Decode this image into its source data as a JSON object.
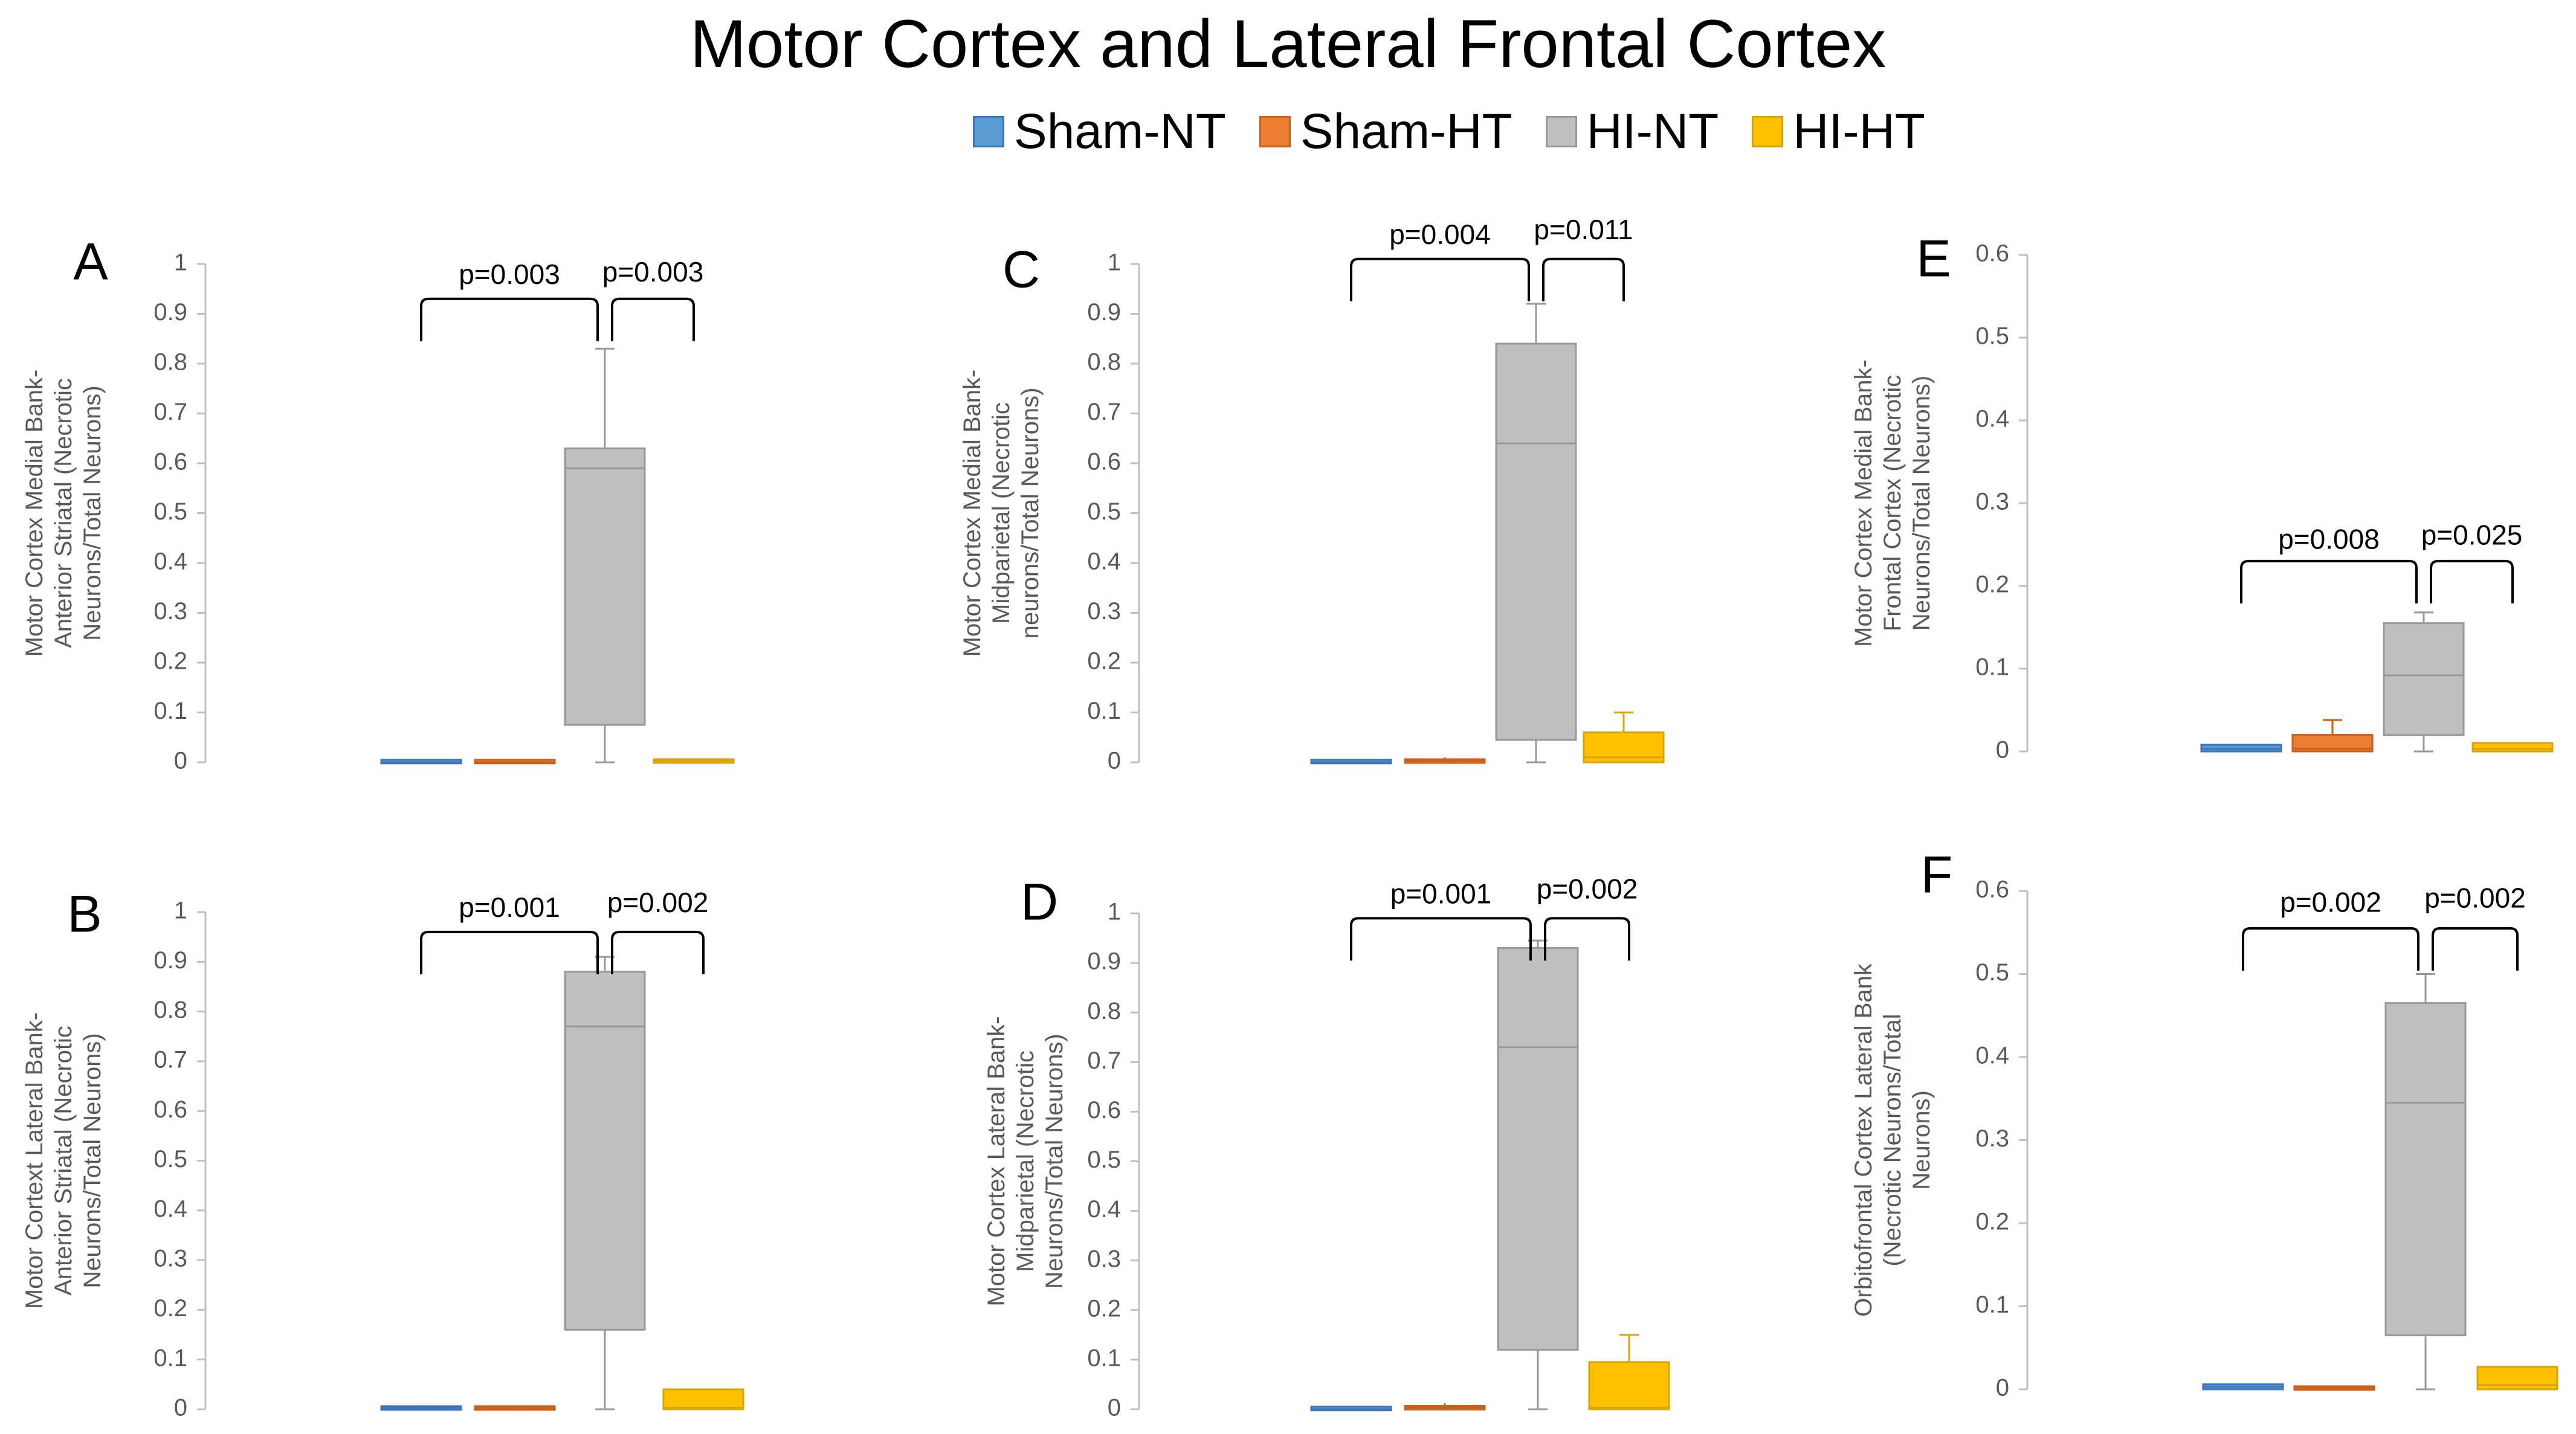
{
  "title": "Motor Cortex and Lateral Frontal Cortex",
  "legend": [
    {
      "label": "Sham-NT",
      "color": "#5B9BD5",
      "stroke": "#3E74B8"
    },
    {
      "label": "Sham-HT",
      "color": "#ED7D31",
      "stroke": "#C9601A"
    },
    {
      "label": "HI-NT",
      "color": "#BFBFBF",
      "stroke": "#999999"
    },
    {
      "label": "HI-HT",
      "color": "#FFC000",
      "stroke": "#D9A300"
    }
  ],
  "chart_data": [
    {
      "panel": "A",
      "type": "box",
      "ylabel": "Motor Cortex Medial Bank-Anterior Striatal (Necrotic Neurons/Total Neurons)",
      "ylabel_lines": [
        "Motor Cortex Medial Bank-",
        "Anterior Striatal (Necrotic",
        "Neurons/Total Neurons)"
      ],
      "ylim": [
        0,
        1
      ],
      "yticks": [
        "0",
        "0.1",
        "0.2",
        "0.3",
        "0.4",
        "0.5",
        "0.6",
        "0.7",
        "0.8",
        "0.9",
        "1"
      ],
      "categories": [
        "Sham-NT",
        "Sham-HT",
        "HI-NT",
        "HI-HT"
      ],
      "boxes": [
        {
          "min": 0,
          "q1": 0,
          "median": 0,
          "q3": 0.003,
          "max": 0.003
        },
        {
          "min": 0,
          "q1": 0,
          "median": 0,
          "q3": 0.003,
          "max": 0.003
        },
        {
          "min": 0,
          "q1": 0.075,
          "median": 0.59,
          "q3": 0.63,
          "max": 0.83
        },
        {
          "min": 0,
          "q1": 0,
          "median": 0.003,
          "q3": 0.005,
          "max": 0.006
        }
      ],
      "annotations": [
        {
          "text": "p=0.003",
          "from": "Sham-NT",
          "to": "HI-NT",
          "y_data": 0.93,
          "label_y_data": 0.96
        },
        {
          "text": "p=0.003",
          "from": "HI-NT",
          "to": "HI-HT",
          "y_data": 0.93,
          "label_y_data": 0.965
        }
      ]
    },
    {
      "panel": "B",
      "type": "box",
      "ylabel": "Motor Cortext Lateral Bank-Anterior Striatal (Necrotic Neurons/Total Neurons)",
      "ylabel_lines": [
        "Motor Cortext Lateral Bank-",
        "Anterior Striatal (Necrotic",
        "Neurons/Total Neurons)"
      ],
      "ylim": [
        0,
        1
      ],
      "yticks": [
        "0",
        "0.1",
        "0.2",
        "0.3",
        "0.4",
        "0.5",
        "0.6",
        "0.7",
        "0.8",
        "0.9",
        "1"
      ],
      "categories": [
        "Sham-NT",
        "Sham-HT",
        "HI-NT",
        "HI-HT"
      ],
      "boxes": [
        {
          "min": 0,
          "q1": 0,
          "median": 0.003,
          "q3": 0.005,
          "max": 0.008
        },
        {
          "min": 0,
          "q1": 0,
          "median": 0.003,
          "q3": 0.005,
          "max": 0.008
        },
        {
          "min": 0,
          "q1": 0.16,
          "median": 0.77,
          "q3": 0.88,
          "max": 0.91
        },
        {
          "min": 0,
          "q1": 0,
          "median": 0.003,
          "q3": 0.04,
          "max": 0.04
        }
      ],
      "annotations": [
        {
          "text": "p=0.001",
          "from": "Sham-NT",
          "to": "HI-NT",
          "y_data": 0.96,
          "label_y_data": 0.99
        },
        {
          "text": "p=0.002",
          "from": "HI-NT",
          "to": "HI-HT",
          "y_data": 0.96,
          "label_y_data": 1.0
        }
      ]
    },
    {
      "panel": "C",
      "type": "box",
      "ylabel": "Motor Cortex Medial Bank-Midparietal (Necrotic neurons/Total Neurons)",
      "ylabel_lines": [
        "Motor Cortex Medial Bank-",
        "Midparietal (Necrotic",
        "neurons/Total Neurons)"
      ],
      "ylim": [
        0,
        1
      ],
      "yticks": [
        "0",
        "0.1",
        "0.2",
        "0.3",
        "0.4",
        "0.5",
        "0.6",
        "0.7",
        "0.8",
        "0.9",
        "1"
      ],
      "categories": [
        "Sham-NT",
        "Sham-HT",
        "HI-NT",
        "HI-HT"
      ],
      "boxes": [
        {
          "min": 0,
          "q1": 0,
          "median": 0,
          "q3": 0.003,
          "max": 0.003
        },
        {
          "min": 0,
          "q1": 0,
          "median": 0.003,
          "q3": 0.005,
          "max": 0.01
        },
        {
          "min": 0,
          "q1": 0.045,
          "median": 0.64,
          "q3": 0.84,
          "max": 0.92
        },
        {
          "min": 0,
          "q1": 0,
          "median": 0.01,
          "q3": 0.06,
          "max": 0.1
        }
      ],
      "annotations": [
        {
          "text": "p=0.004",
          "from": "Sham-NT",
          "to": "HI-NT",
          "y_data": 1.01,
          "label_y_data": 1.04
        },
        {
          "text": "p=0.011",
          "from": "HI-NT",
          "to": "HI-HT",
          "y_data": 1.01,
          "label_y_data": 1.05
        }
      ]
    },
    {
      "panel": "D",
      "type": "box",
      "ylabel": "Motor Cortex Lateral Bank-Midparietal (Necrotic Neurons/Total Neurons)",
      "ylabel_lines": [
        "Motor Cortex  Lateral Bank-",
        "Midparietal (Necrotic",
        "Neurons/Total Neurons)"
      ],
      "ylim": [
        0,
        1
      ],
      "yticks": [
        "0",
        "0.1",
        "0.2",
        "0.3",
        "0.4",
        "0.5",
        "0.6",
        "0.7",
        "0.8",
        "0.9",
        "1"
      ],
      "categories": [
        "Sham-NT",
        "Sham-HT",
        "HI-NT",
        "HI-HT"
      ],
      "boxes": [
        {
          "min": 0,
          "q1": 0,
          "median": 0,
          "q3": 0.003,
          "max": 0.003
        },
        {
          "min": 0,
          "q1": 0,
          "median": 0.003,
          "q3": 0.006,
          "max": 0.012
        },
        {
          "min": 0,
          "q1": 0.12,
          "median": 0.73,
          "q3": 0.93,
          "max": 0.945
        },
        {
          "min": 0,
          "q1": 0,
          "median": 0.003,
          "q3": 0.095,
          "max": 0.15
        }
      ],
      "annotations": [
        {
          "text": "p=0.001",
          "from": "Sham-NT",
          "to": "HI-NT",
          "y_data": 0.99,
          "label_y_data": 1.02
        },
        {
          "text": "p=0.002",
          "from": "HI-NT",
          "to": "HI-HT",
          "y_data": 0.99,
          "label_y_data": 1.03
        }
      ]
    },
    {
      "panel": "E",
      "type": "box",
      "ylabel": "Motor Cortex Medial Bank-Frontal Cortex (Necrotic Neurons/Total Neurons)",
      "ylabel_lines": [
        "Motor Cortex Medial Bank-",
        "Frontal Cortex (Necrotic",
        "Neurons/Total Neurons)"
      ],
      "ylim": [
        0,
        0.6
      ],
      "yticks": [
        "0",
        "0.1",
        "0.2",
        "0.3",
        "0.4",
        "0.5",
        "0.6"
      ],
      "categories": [
        "Sham-NT",
        "Sham-HT",
        "HI-NT",
        "HI-HT"
      ],
      "boxes": [
        {
          "min": 0,
          "q1": 0,
          "median": 0.003,
          "q3": 0.008,
          "max": 0.008
        },
        {
          "min": 0,
          "q1": 0,
          "median": 0.003,
          "q3": 0.02,
          "max": 0.038
        },
        {
          "min": 0,
          "q1": 0.02,
          "median": 0.092,
          "q3": 0.155,
          "max": 0.168
        },
        {
          "min": 0,
          "q1": 0,
          "median": 0.003,
          "q3": 0.01,
          "max": 0.01
        }
      ],
      "annotations": [
        {
          "text": "p=0.008",
          "from": "Sham-NT",
          "to": "HI-NT",
          "y_data": 0.23,
          "label_y_data": 0.245
        },
        {
          "text": "p=0.025",
          "from": "HI-NT",
          "to": "HI-HT",
          "y_data": 0.23,
          "label_y_data": 0.25
        }
      ]
    },
    {
      "panel": "F",
      "type": "box",
      "ylabel": "Orbitofrontal Cortex Lateral Bank (Necrotic Neurons/Total Neurons)",
      "ylabel_lines": [
        "Orbitofrontal Cortex Lateral Bank",
        "(Necrotic Neurons/Total",
        "Neurons)"
      ],
      "ylim": [
        0,
        0.6
      ],
      "yticks": [
        "0",
        "0.1",
        "0.2",
        "0.3",
        "0.4",
        "0.5",
        "0.6"
      ],
      "categories": [
        "Sham-NT",
        "Sham-HT",
        "HI-NT",
        "HI-HT"
      ],
      "boxes": [
        {
          "min": 0,
          "q1": 0,
          "median": 0.003,
          "q3": 0.006,
          "max": 0.006
        },
        {
          "min": 0,
          "q1": 0,
          "median": 0.002,
          "q3": 0.003,
          "max": 0.003
        },
        {
          "min": 0,
          "q1": 0.065,
          "median": 0.345,
          "q3": 0.465,
          "max": 0.5
        },
        {
          "min": 0,
          "q1": 0,
          "median": 0.005,
          "q3": 0.027,
          "max": 0.027
        }
      ],
      "annotations": [
        {
          "text": "p=0.002",
          "from": "Sham-NT",
          "to": "HI-NT",
          "y_data": 0.555,
          "label_y_data": 0.575
        },
        {
          "text": "p=0.002",
          "from": "HI-NT",
          "to": "HI-HT",
          "y_data": 0.555,
          "label_y_data": 0.58
        }
      ]
    }
  ]
}
